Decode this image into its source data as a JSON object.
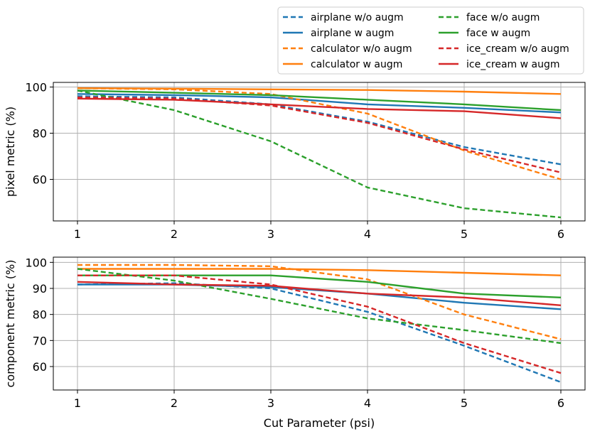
{
  "chart_data": [
    {
      "type": "line",
      "ylabel": "pixel metric (%)",
      "xlabel": "",
      "x": [
        1,
        2,
        3,
        4,
        5,
        6
      ],
      "xticks": [
        "1",
        "2",
        "3",
        "4",
        "5",
        "6"
      ],
      "xlim": [
        0.75,
        6.25
      ],
      "ylim": [
        42,
        102
      ],
      "yticks": [
        "60",
        "80",
        "100"
      ],
      "ytick_values": [
        60,
        80,
        100
      ],
      "grid": true,
      "series": [
        {
          "name": "airplane w/o augm",
          "color": "#1f77b4",
          "style": "dashed",
          "values": [
            96,
            95.5,
            92.5,
            85,
            74,
            66.5
          ]
        },
        {
          "name": "airplane w augm",
          "color": "#1f77b4",
          "style": "solid",
          "values": [
            97,
            96.5,
            95.5,
            92.5,
            91,
            89
          ]
        },
        {
          "name": "calculator w/o augm",
          "color": "#ff7f0e",
          "style": "dashed",
          "values": [
            99.5,
            99,
            97,
            88.5,
            72.5,
            60
          ]
        },
        {
          "name": "calculator w augm",
          "color": "#ff7f0e",
          "style": "solid",
          "values": [
            99.5,
            99.3,
            99,
            98.7,
            98,
            97
          ]
        },
        {
          "name": "face w/o augm",
          "color": "#2ca02c",
          "style": "dashed",
          "values": [
            98.5,
            90,
            76.5,
            56.5,
            47.5,
            43.5
          ]
        },
        {
          "name": "face w augm",
          "color": "#2ca02c",
          "style": "solid",
          "values": [
            98.5,
            97.5,
            96.5,
            94.5,
            92.5,
            90
          ]
        },
        {
          "name": "ice_cream w/o augm",
          "color": "#d62728",
          "style": "dashed",
          "values": [
            95.5,
            95,
            92,
            84.5,
            73,
            63
          ]
        },
        {
          "name": "ice_cream w augm",
          "color": "#d62728",
          "style": "solid",
          "values": [
            95,
            94.5,
            92.5,
            90.5,
            89.5,
            86.5
          ]
        }
      ]
    },
    {
      "type": "line",
      "ylabel": "component metric (%)",
      "xlabel": "Cut Parameter (psi)",
      "x": [
        1,
        2,
        3,
        4,
        5,
        6
      ],
      "xticks": [
        "1",
        "2",
        "3",
        "4",
        "5",
        "6"
      ],
      "xlim": [
        0.75,
        6.25
      ],
      "ylim": [
        51,
        102
      ],
      "yticks": [
        "60",
        "70",
        "80",
        "90",
        "100"
      ],
      "ytick_values": [
        60,
        70,
        80,
        90,
        100
      ],
      "grid": true,
      "series": [
        {
          "name": "airplane w/o augm",
          "color": "#1f77b4",
          "style": "dashed",
          "values": [
            91.5,
            92,
            90,
            81,
            68,
            54
          ]
        },
        {
          "name": "airplane w augm",
          "color": "#1f77b4",
          "style": "solid",
          "values": [
            91.5,
            91.5,
            90.5,
            88,
            84.5,
            82
          ]
        },
        {
          "name": "calculator w/o augm",
          "color": "#ff7f0e",
          "style": "dashed",
          "values": [
            99,
            99,
            98.5,
            93.5,
            80,
            70.5
          ]
        },
        {
          "name": "calculator w augm",
          "color": "#ff7f0e",
          "style": "solid",
          "values": [
            97.5,
            97.5,
            97.5,
            97,
            96,
            95
          ]
        },
        {
          "name": "face w/o augm",
          "color": "#2ca02c",
          "style": "dashed",
          "values": [
            97.5,
            93,
            86,
            78.5,
            74,
            69
          ]
        },
        {
          "name": "face w augm",
          "color": "#2ca02c",
          "style": "solid",
          "values": [
            95,
            95,
            95,
            92.5,
            88,
            86.5
          ]
        },
        {
          "name": "ice_cream w/o augm",
          "color": "#d62728",
          "style": "dashed",
          "values": [
            95,
            95,
            91.5,
            83,
            69,
            57.5
          ]
        },
        {
          "name": "ice_cream w augm",
          "color": "#d62728",
          "style": "solid",
          "values": [
            92.5,
            91.5,
            91,
            88,
            86.5,
            83.5
          ]
        }
      ]
    }
  ],
  "legend": {
    "placement": "top-right",
    "entries": [
      {
        "label": "airplane w/o augm",
        "color": "#1f77b4",
        "style": "dashed"
      },
      {
        "label": "airplane w augm",
        "color": "#1f77b4",
        "style": "solid"
      },
      {
        "label": "calculator w/o augm",
        "color": "#ff7f0e",
        "style": "dashed"
      },
      {
        "label": "calculator w augm",
        "color": "#ff7f0e",
        "style": "solid"
      },
      {
        "label": "face w/o augm",
        "color": "#2ca02c",
        "style": "dashed"
      },
      {
        "label": "face w augm",
        "color": "#2ca02c",
        "style": "solid"
      },
      {
        "label": "ice_cream w/o augm",
        "color": "#d62728",
        "style": "dashed"
      },
      {
        "label": "ice_cream w augm",
        "color": "#d62728",
        "style": "solid"
      }
    ]
  }
}
